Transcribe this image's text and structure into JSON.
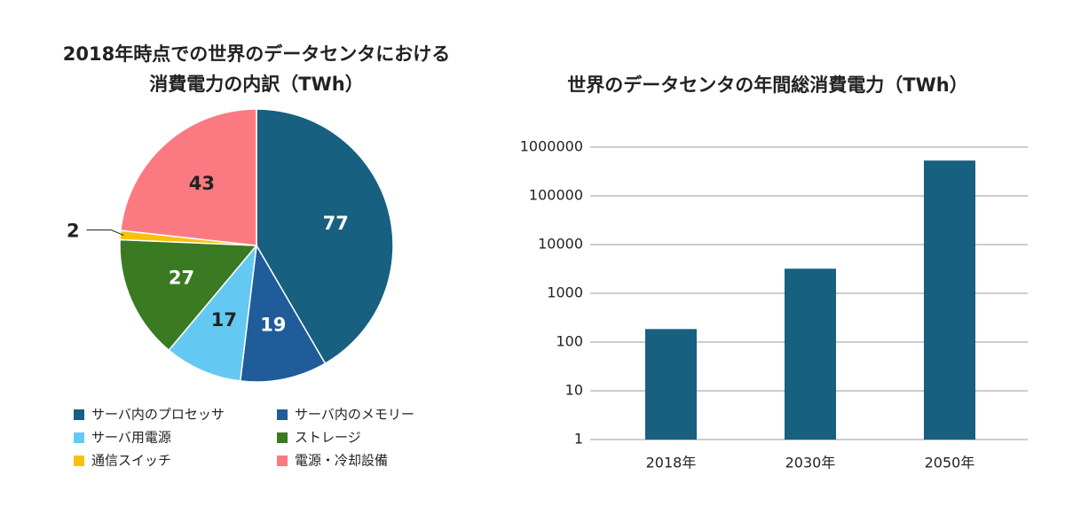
{
  "chart_data": [
    {
      "type": "pie",
      "title": [
        "2018年時点での世界のデータセンタにおける",
        "消費電力の内訳（TWh）"
      ],
      "categories": [
        "サーバ内のプロセッサ",
        "サーバ内のメモリー",
        "サーバ用電源",
        "ストレージ",
        "通信スイッチ",
        "電源・冷却設備"
      ],
      "values": [
        77,
        19,
        17,
        27,
        2,
        43
      ],
      "colors": [
        "#17607f",
        "#1f5c99",
        "#63c9f2",
        "#3a7a22",
        "#f9c10a",
        "#fb7a82"
      ]
    },
    {
      "type": "bar",
      "title": "世界のデータセンタの年間総消費電力（TWh）",
      "categories": [
        "2018年",
        "2030年",
        "2050年"
      ],
      "values": [
        185,
        3200,
        530000
      ],
      "color": "#17607f",
      "log_scale": true,
      "ylim": [
        1,
        1000000
      ],
      "yticks": [
        1,
        10,
        100,
        1000,
        10000,
        100000,
        1000000
      ],
      "grid": true
    }
  ]
}
